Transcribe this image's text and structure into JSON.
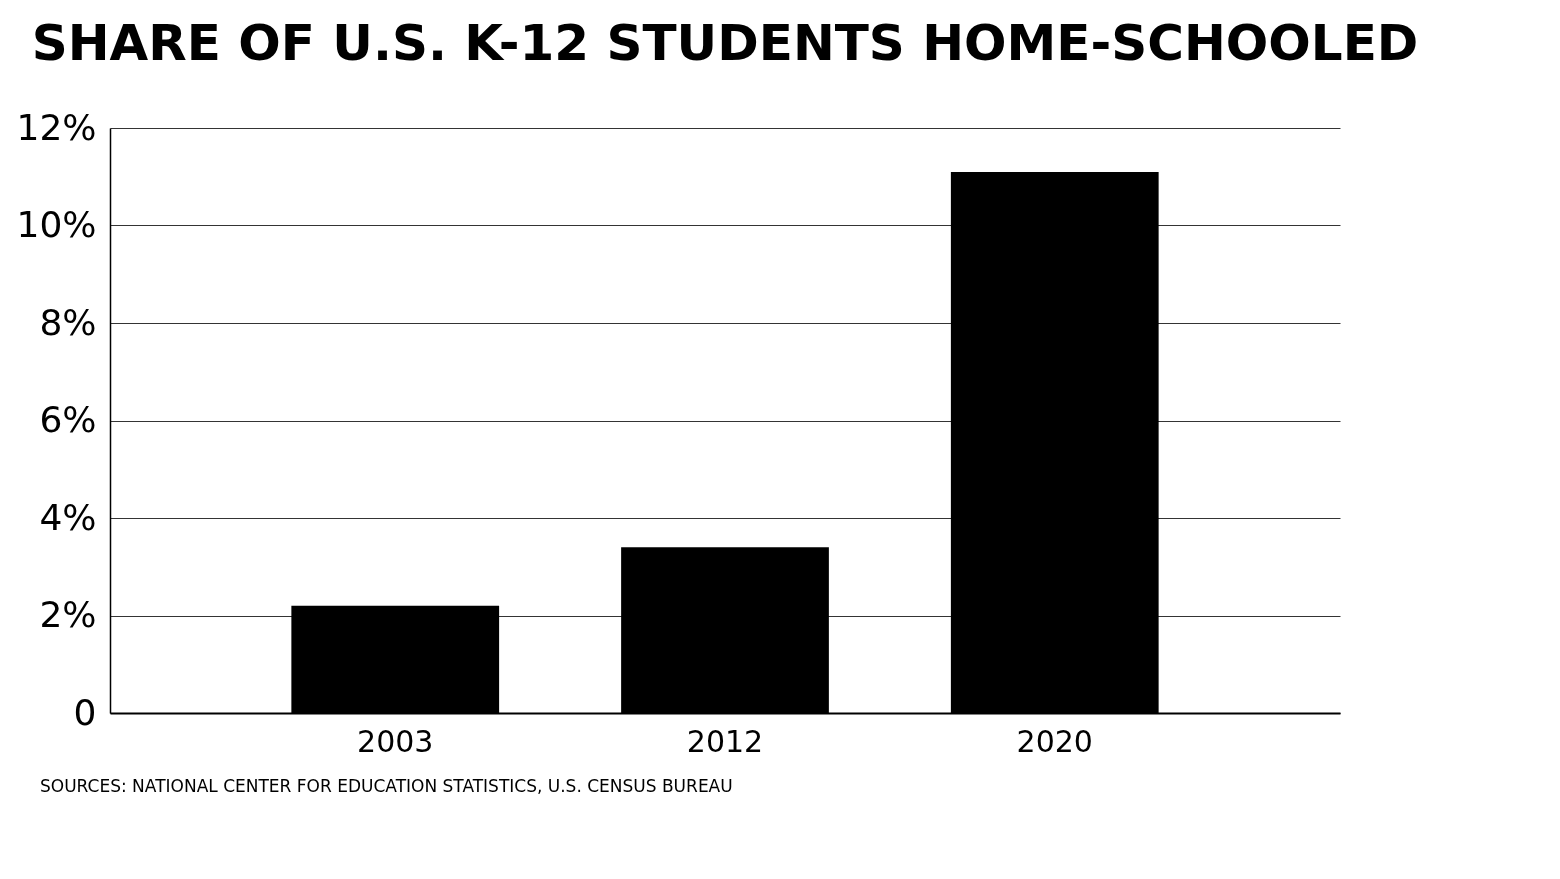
{
  "chart_data": {
    "type": "bar",
    "title": "SHARE OF U.S. K-12 STUDENTS HOME-SCHOOLED",
    "categories": [
      "2003",
      "2012",
      "2020"
    ],
    "values": [
      2.2,
      3.4,
      11.1
    ],
    "color": "#000000",
    "ylim": [
      0,
      12
    ],
    "yticks": [
      {
        "value": 0,
        "label": "0"
      },
      {
        "value": 2,
        "label": "2%"
      },
      {
        "value": 4,
        "label": "4%"
      },
      {
        "value": 6,
        "label": "6%"
      },
      {
        "value": 8,
        "label": "8%"
      },
      {
        "value": 10,
        "label": "10%"
      },
      {
        "value": 12,
        "label": "12%"
      }
    ],
    "grid": "y",
    "annotations": [
      "SOURCES: NATIONAL CENTER FOR EDUCATION STATISTICS, U.S. CENSUS BUREAU"
    ]
  }
}
